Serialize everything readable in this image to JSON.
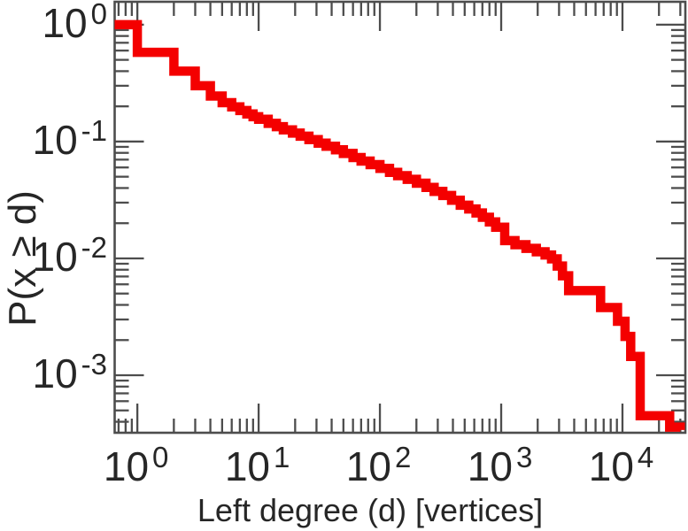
{
  "figure": {
    "background": "#ffffff"
  },
  "chart_data": {
    "type": "line",
    "subtype": "ccdf-step",
    "title": "",
    "xlabel": "Left degree (d) [vertices]",
    "ylabel": "P(x ≥ d)",
    "log_x": true,
    "log_y": true,
    "grid": false,
    "legend": null,
    "xlim": [
      0.65,
      33000
    ],
    "ylim": [
      0.000322,
      1.57
    ],
    "x_ticks": [
      {
        "base": "10",
        "exp": "0",
        "value": 1
      },
      {
        "base": "10",
        "exp": "1",
        "value": 10
      },
      {
        "base": "10",
        "exp": "2",
        "value": 100
      },
      {
        "base": "10",
        "exp": "3",
        "value": 1000
      },
      {
        "base": "10",
        "exp": "4",
        "value": 10000
      }
    ],
    "y_ticks": [
      {
        "base": "10",
        "exp": "0",
        "value": 1
      },
      {
        "base": "10",
        "exp": "-1",
        "value": 0.1
      },
      {
        "base": "10",
        "exp": "-2",
        "value": 0.01
      },
      {
        "base": "10",
        "exp": "-3",
        "value": 0.001
      }
    ],
    "colors": {
      "curve": "#f40000",
      "axis": "#4d4d4d",
      "text": "#262626"
    },
    "line_width": 10.5,
    "points": [
      [
        0.65,
        1.0
      ],
      [
        1,
        0.58
      ],
      [
        2,
        0.4
      ],
      [
        3,
        0.3
      ],
      [
        4,
        0.245
      ],
      [
        5,
        0.215
      ],
      [
        6,
        0.198
      ],
      [
        7,
        0.184
      ],
      [
        8,
        0.172
      ],
      [
        9,
        0.163
      ],
      [
        10,
        0.155
      ],
      [
        12,
        0.143
      ],
      [
        14,
        0.134
      ],
      [
        16,
        0.126
      ],
      [
        19,
        0.118
      ],
      [
        22,
        0.111
      ],
      [
        26,
        0.104
      ],
      [
        31,
        0.097
      ],
      [
        36,
        0.091
      ],
      [
        43,
        0.085
      ],
      [
        50,
        0.079
      ],
      [
        60,
        0.073
      ],
      [
        70,
        0.068
      ],
      [
        83,
        0.0635
      ],
      [
        100,
        0.059
      ],
      [
        120,
        0.0545
      ],
      [
        140,
        0.051
      ],
      [
        168,
        0.0475
      ],
      [
        200,
        0.044
      ],
      [
        240,
        0.0405
      ],
      [
        280,
        0.0375
      ],
      [
        330,
        0.0345
      ],
      [
        390,
        0.0315
      ],
      [
        460,
        0.0285
      ],
      [
        540,
        0.0265
      ],
      [
        620,
        0.0245
      ],
      [
        700,
        0.0225
      ],
      [
        800,
        0.0205
      ],
      [
        900,
        0.0185
      ],
      [
        1070,
        0.0142
      ],
      [
        1300,
        0.0131
      ],
      [
        1600,
        0.0122
      ],
      [
        1950,
        0.0114
      ],
      [
        2300,
        0.0107
      ],
      [
        2600,
        0.0099
      ],
      [
        2900,
        0.0086
      ],
      [
        3200,
        0.0071
      ],
      [
        3600,
        0.0053
      ],
      [
        6600,
        0.0038
      ],
      [
        9100,
        0.0029
      ],
      [
        10500,
        0.00215
      ],
      [
        11700,
        0.00145
      ],
      [
        14000,
        0.00045
      ],
      [
        24500,
        0.00036
      ],
      [
        30000,
        0.00034
      ]
    ]
  }
}
